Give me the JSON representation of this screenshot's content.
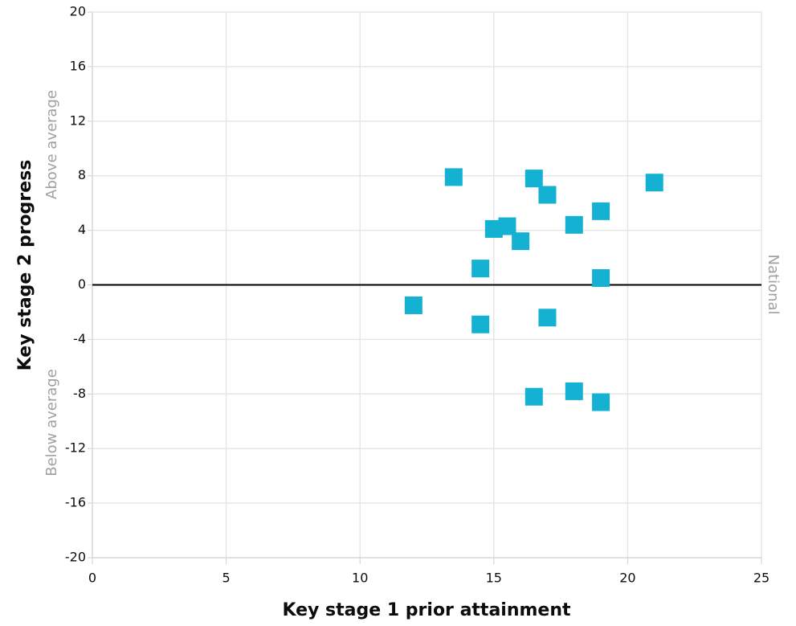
{
  "chart_data": {
    "type": "scatter",
    "x_label": "Key stage 1 prior attainment",
    "y_label": "Key stage 2 progress",
    "above_label": "Above average",
    "below_label": "Below average",
    "reference_line": {
      "y": 0,
      "label": "National",
      "color": "#000000"
    },
    "x": [
      13.5,
      16.5,
      21.0,
      17.0,
      19.0,
      15.5,
      15.0,
      18.0,
      16.0,
      14.5,
      19.0,
      12.0,
      14.5,
      17.0,
      16.5,
      18.0,
      19.0
    ],
    "values": [
      7.9,
      7.8,
      7.5,
      6.6,
      5.4,
      4.3,
      4.1,
      4.4,
      3.2,
      1.2,
      0.5,
      -1.5,
      -2.9,
      -2.4,
      -8.2,
      -7.8,
      -8.6
    ],
    "color": "#14b1d2",
    "marker": "square",
    "xlim": [
      0,
      25
    ],
    "xticks": [
      0,
      5,
      10,
      15,
      20,
      25
    ],
    "ylim": [
      -20,
      20
    ],
    "yticks": [
      -20,
      -16,
      -12,
      -8,
      -4,
      0,
      4,
      8,
      12,
      16,
      20
    ],
    "grid": true
  }
}
